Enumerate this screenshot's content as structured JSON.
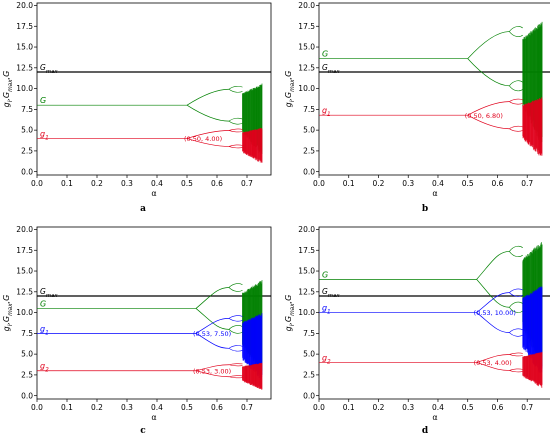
{
  "chart_data": [
    {
      "id": "a",
      "type": "line",
      "caption": "a",
      "xlabel": "α",
      "ylabel": "g_i,G_max,G",
      "xlim": [
        0.0,
        0.78
      ],
      "ylim": [
        -0.4,
        20.3
      ],
      "xticks": [
        "0.0",
        "0.1",
        "0.2",
        "0.3",
        "0.4",
        "0.5",
        "0.6",
        "0.7"
      ],
      "yticks": [
        "0.0",
        "2.5",
        "5.0",
        "7.5",
        "10.0",
        "12.5",
        "15.0",
        "17.5",
        "20.0"
      ],
      "gmax": 12.0,
      "gmax_label": "G_max",
      "series": [
        {
          "name": "G",
          "label": "G",
          "color": "#008000",
          "base": 8.0,
          "bif": 0.5
        },
        {
          "name": "g_1",
          "label": "g_1",
          "color": "#e0001b",
          "base": 4.0,
          "bif": 0.5
        }
      ],
      "annotations": [
        {
          "text": "(0.50, 4.00)",
          "x": 0.5,
          "y": 4.0,
          "color": "#e0001b"
        }
      ]
    },
    {
      "id": "b",
      "type": "line",
      "caption": "b",
      "xlabel": "α",
      "ylabel": "g_i,G_max,G",
      "xlim": [
        0.0,
        0.78
      ],
      "ylim": [
        -0.4,
        20.3
      ],
      "xticks": [
        "0.0",
        "0.1",
        "0.2",
        "0.3",
        "0.4",
        "0.5",
        "0.6",
        "0.7"
      ],
      "yticks": [
        "0.0",
        "2.5",
        "5.0",
        "7.5",
        "10.0",
        "12.5",
        "15.0",
        "17.5",
        "20.0"
      ],
      "gmax": 12.0,
      "gmax_label": "G_max",
      "series": [
        {
          "name": "G",
          "label": "G",
          "color": "#008000",
          "base": 13.6,
          "bif": 0.5
        },
        {
          "name": "g_1",
          "label": "g_1",
          "color": "#e0001b",
          "base": 6.8,
          "bif": 0.5
        }
      ],
      "annotations": [
        {
          "text": "(0.50, 6.80)",
          "x": 0.5,
          "y": 6.8,
          "color": "#e0001b"
        }
      ]
    },
    {
      "id": "c",
      "type": "line",
      "caption": "c",
      "xlabel": "α",
      "ylabel": "g_i,G_max,G",
      "xlim": [
        0.0,
        0.78
      ],
      "ylim": [
        -0.4,
        20.3
      ],
      "xticks": [
        "0.0",
        "0.1",
        "0.2",
        "0.3",
        "0.4",
        "0.5",
        "0.6",
        "0.7"
      ],
      "yticks": [
        "0.0",
        "2.5",
        "5.0",
        "7.5",
        "10.0",
        "12.5",
        "15.0",
        "17.5",
        "20.0"
      ],
      "gmax": 12.0,
      "gmax_label": "G_max",
      "series": [
        {
          "name": "G",
          "label": "G",
          "color": "#008000",
          "base": 10.5,
          "bif": 0.53
        },
        {
          "name": "g_1",
          "label": "g_1",
          "color": "#0000ff",
          "base": 7.5,
          "bif": 0.53
        },
        {
          "name": "g_2",
          "label": "g_2",
          "color": "#e0001b",
          "base": 3.0,
          "bif": 0.53
        }
      ],
      "annotations": [
        {
          "text": "(0.53, 7.50)",
          "x": 0.53,
          "y": 7.5,
          "color": "#0000ff"
        },
        {
          "text": "(0.53, 3.00)",
          "x": 0.53,
          "y": 3.0,
          "color": "#e0001b"
        }
      ]
    },
    {
      "id": "d",
      "type": "line",
      "caption": "d",
      "xlabel": "α",
      "ylabel": "g_i,G_max,G",
      "xlim": [
        0.0,
        0.78
      ],
      "ylim": [
        -0.4,
        20.3
      ],
      "xticks": [
        "0.0",
        "0.1",
        "0.2",
        "0.3",
        "0.4",
        "0.5",
        "0.6",
        "0.7"
      ],
      "yticks": [
        "0.0",
        "2.5",
        "5.0",
        "7.5",
        "10.0",
        "12.5",
        "15.0",
        "17.5",
        "20.0"
      ],
      "gmax": 12.0,
      "gmax_label": "G_max",
      "series": [
        {
          "name": "G",
          "label": "G",
          "color": "#008000",
          "base": 14.0,
          "bif": 0.53
        },
        {
          "name": "g_1",
          "label": "g_1",
          "color": "#0000ff",
          "base": 10.0,
          "bif": 0.53
        },
        {
          "name": "g_2",
          "label": "g_2",
          "color": "#e0001b",
          "base": 4.0,
          "bif": 0.53
        }
      ],
      "annotations": [
        {
          "text": "(0.53, 10.00)",
          "x": 0.53,
          "y": 10.0,
          "color": "#0000ff"
        },
        {
          "text": "(0.53, 4.00)",
          "x": 0.53,
          "y": 4.0,
          "color": "#e0001b"
        }
      ]
    }
  ]
}
